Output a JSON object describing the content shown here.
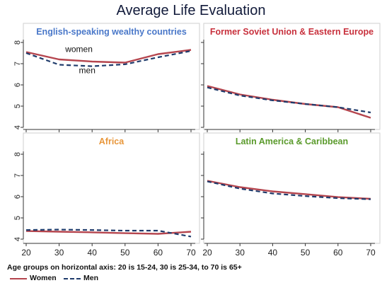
{
  "title": "Average Life Evaluation",
  "footnote": "Age groups on horizontal axis: 20 is 15-24, 30 is 25-34, to 70 is 65+",
  "colors": {
    "women": "#b5454e",
    "men": "#1f3b6b",
    "axis": "#333333",
    "grid": "#e6e6e6"
  },
  "legend": [
    {
      "label": "Women",
      "series": "women"
    },
    {
      "label": "Men",
      "series": "men"
    }
  ],
  "chart_data": [
    {
      "type": "line",
      "title": "English-speaking wealthy countries",
      "title_color": "#4a78c9",
      "x": [
        20,
        30,
        40,
        50,
        60,
        70
      ],
      "xlim": [
        20,
        70
      ],
      "ylim": [
        4,
        8
      ],
      "xticks": [
        20,
        30,
        40,
        50,
        60,
        70
      ],
      "yticks": [
        4,
        5,
        6,
        7,
        8
      ],
      "show_xticks": false,
      "show_yticks": true,
      "series": [
        {
          "name": "Women",
          "key": "women",
          "values": [
            7.55,
            7.2,
            7.1,
            7.05,
            7.45,
            7.65
          ]
        },
        {
          "name": "Men",
          "key": "men",
          "values": [
            7.5,
            6.95,
            6.88,
            6.97,
            7.3,
            7.6
          ]
        }
      ],
      "annotations": [
        {
          "text": "women",
          "x": 36,
          "y": 7.55
        },
        {
          "text": "men",
          "x": 38.5,
          "y": 6.55
        }
      ]
    },
    {
      "type": "line",
      "title": "Former Soviet Union & Eastern Europe",
      "title_color": "#c8313d",
      "x": [
        20,
        30,
        40,
        50,
        60,
        70
      ],
      "xlim": [
        20,
        70
      ],
      "ylim": [
        4,
        8
      ],
      "xticks": [
        20,
        30,
        40,
        50,
        60,
        70
      ],
      "yticks": [
        4,
        5,
        6,
        7,
        8
      ],
      "show_xticks": false,
      "show_yticks": false,
      "series": [
        {
          "name": "Women",
          "key": "women",
          "values": [
            5.95,
            5.55,
            5.3,
            5.1,
            4.95,
            4.45
          ]
        },
        {
          "name": "Men",
          "key": "men",
          "values": [
            5.88,
            5.5,
            5.27,
            5.1,
            4.95,
            4.7
          ]
        }
      ],
      "annotations": []
    },
    {
      "type": "line",
      "title": "Africa",
      "title_color": "#e8963a",
      "x": [
        20,
        30,
        40,
        50,
        60,
        70
      ],
      "xlim": [
        20,
        70
      ],
      "ylim": [
        4,
        8
      ],
      "xticks": [
        20,
        30,
        40,
        50,
        60,
        70
      ],
      "yticks": [
        4,
        5,
        6,
        7,
        8
      ],
      "show_xticks": true,
      "show_yticks": true,
      "series": [
        {
          "name": "Women",
          "key": "women",
          "values": [
            4.38,
            4.35,
            4.32,
            4.28,
            4.25,
            4.35
          ]
        },
        {
          "name": "Men",
          "key": "men",
          "values": [
            4.43,
            4.45,
            4.43,
            4.4,
            4.4,
            4.12
          ]
        }
      ],
      "annotations": []
    },
    {
      "type": "line",
      "title": "Latin America & Caribbean",
      "title_color": "#5a9a2b",
      "x": [
        20,
        30,
        40,
        50,
        60,
        70
      ],
      "xlim": [
        20,
        70
      ],
      "ylim": [
        4,
        8
      ],
      "xticks": [
        20,
        30,
        40,
        50,
        60,
        70
      ],
      "yticks": [
        4,
        5,
        6,
        7,
        8
      ],
      "show_xticks": true,
      "show_yticks": false,
      "series": [
        {
          "name": "Women",
          "key": "women",
          "values": [
            6.75,
            6.45,
            6.25,
            6.12,
            5.98,
            5.9
          ]
        },
        {
          "name": "Men",
          "key": "men",
          "values": [
            6.72,
            6.38,
            6.15,
            6.03,
            5.93,
            5.88
          ]
        }
      ],
      "annotations": []
    }
  ]
}
